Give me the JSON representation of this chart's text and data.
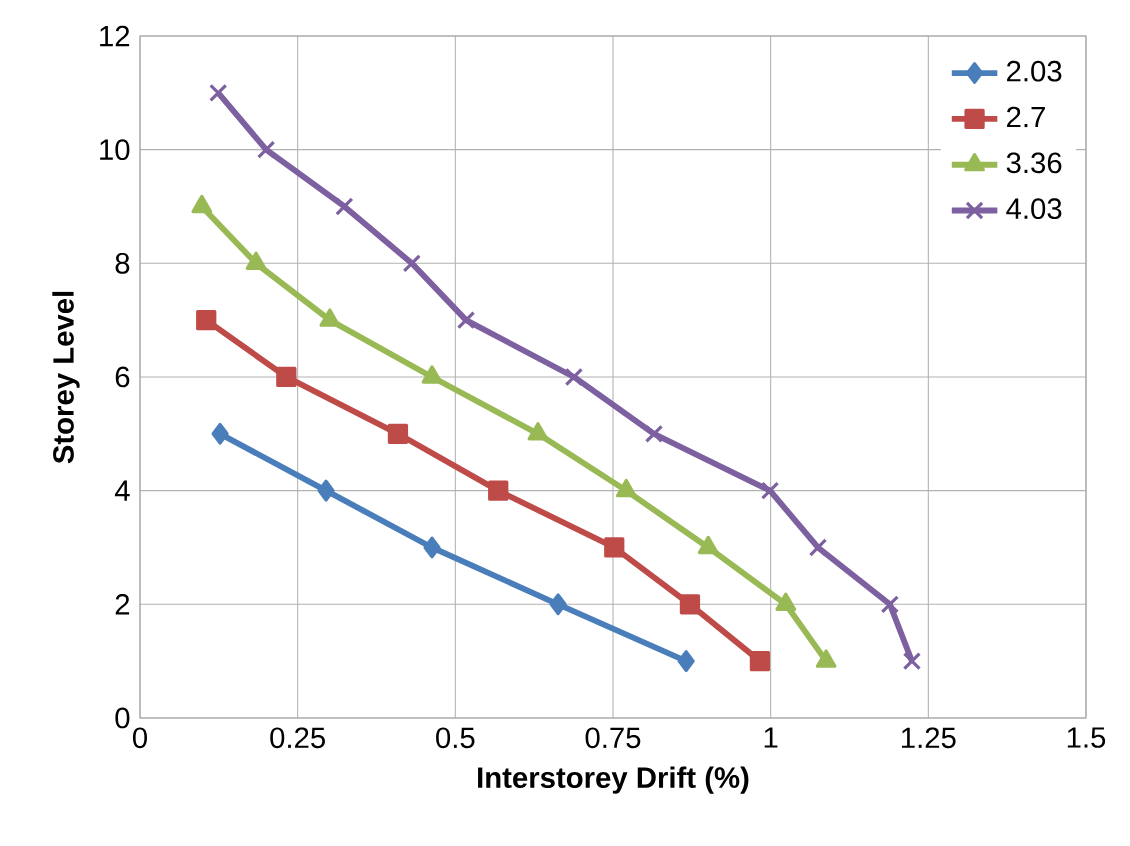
{
  "chart_data": {
    "type": "line",
    "xlabel": "Interstorey Drift (%)",
    "ylabel": "Storey Level",
    "xlim": [
      0,
      1.5
    ],
    "ylim": [
      0,
      12
    ],
    "xticks": [
      0,
      0.25,
      0.5,
      0.75,
      1,
      1.25,
      1.5
    ],
    "yticks": [
      0,
      2,
      4,
      6,
      8,
      10,
      12
    ],
    "grid": true,
    "legend": "top right",
    "line_style": "solid",
    "series": [
      {
        "name": "2.03",
        "color": "#4a7ebb",
        "marker": "diamond",
        "x": [
          0.127,
          0.295,
          0.463,
          0.663,
          0.866
        ],
        "values": [
          5,
          4,
          3,
          2,
          1
        ]
      },
      {
        "name": "2.7",
        "color": "#be4b48",
        "marker": "square",
        "x": [
          0.105,
          0.232,
          0.409,
          0.568,
          0.752,
          0.872,
          0.983
        ],
        "values": [
          7,
          6,
          5,
          4,
          3,
          2,
          1
        ]
      },
      {
        "name": "3.36",
        "color": "#98b954",
        "marker": "triangle",
        "x": [
          0.098,
          0.184,
          0.301,
          0.463,
          0.631,
          0.771,
          0.901,
          1.024,
          1.088
        ],
        "values": [
          9,
          8,
          7,
          6,
          5,
          4,
          3,
          2,
          1
        ]
      },
      {
        "name": "4.03",
        "color": "#7d60a0",
        "marker": "cross",
        "x": [
          0.124,
          0.2,
          0.324,
          0.431,
          0.517,
          0.688,
          0.815,
          0.999,
          1.075,
          1.189,
          1.224
        ],
        "values": [
          11,
          10,
          9,
          8,
          7,
          6,
          5,
          4,
          3,
          2,
          1
        ]
      }
    ]
  }
}
